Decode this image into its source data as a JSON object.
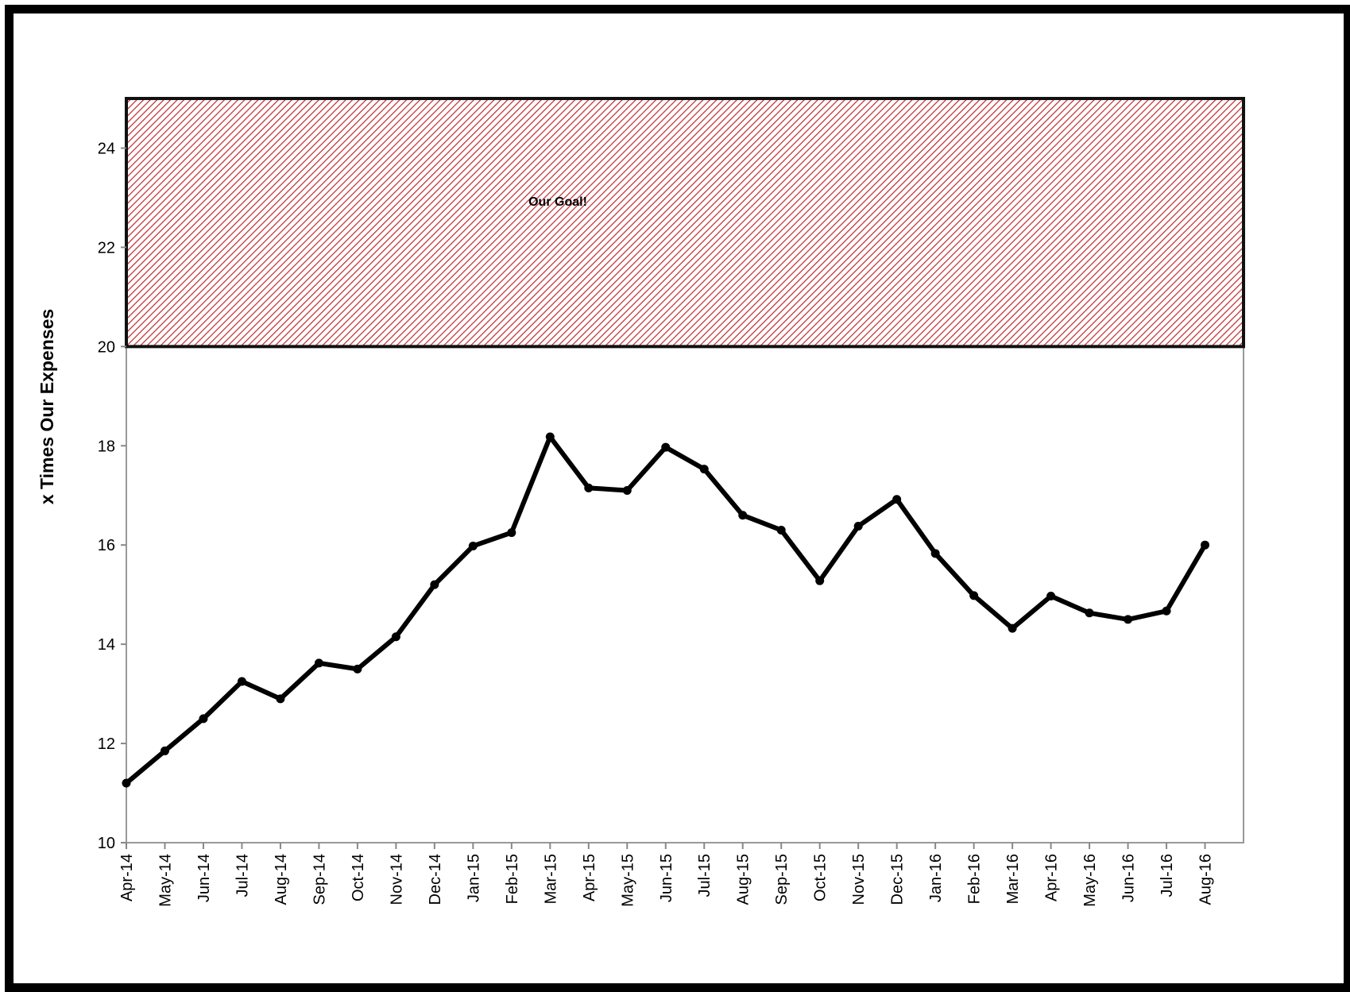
{
  "chart_data": {
    "type": "line",
    "title": "",
    "xlabel": "",
    "ylabel": "x Times Our Expenses",
    "ylim": [
      10,
      25
    ],
    "yticks": [
      10,
      12,
      14,
      16,
      18,
      20,
      22,
      24
    ],
    "grid": false,
    "legend": "none",
    "categories": [
      "Apr-14",
      "May-14",
      "Jun-14",
      "Jul-14",
      "Aug-14",
      "Sep-14",
      "Oct-14",
      "Nov-14",
      "Dec-14",
      "Jan-15",
      "Feb-15",
      "Mar-15",
      "Apr-15",
      "May-15",
      "Jun-15",
      "Jul-15",
      "Aug-15",
      "Sep-15",
      "Oct-15",
      "Nov-15",
      "Dec-15",
      "Jan-16",
      "Feb-16",
      "Mar-16",
      "Apr-16",
      "May-16",
      "Jun-16",
      "Jul-16",
      "Aug-16"
    ],
    "series": [
      {
        "values": [
          11.2,
          11.85,
          12.5,
          13.25,
          12.9,
          13.62,
          13.5,
          14.15,
          15.2,
          15.98,
          16.25,
          18.18,
          17.15,
          17.1,
          17.97,
          17.53,
          16.6,
          16.3,
          15.28,
          16.38,
          16.92,
          15.83,
          14.98,
          14.32,
          14.97,
          14.63,
          14.5,
          14.67,
          16.0
        ],
        "color": "#000000"
      }
    ],
    "goal_band": {
      "label": "Our Goal!",
      "from": 20,
      "to": 25,
      "hatch_color": "#c0282d"
    }
  }
}
